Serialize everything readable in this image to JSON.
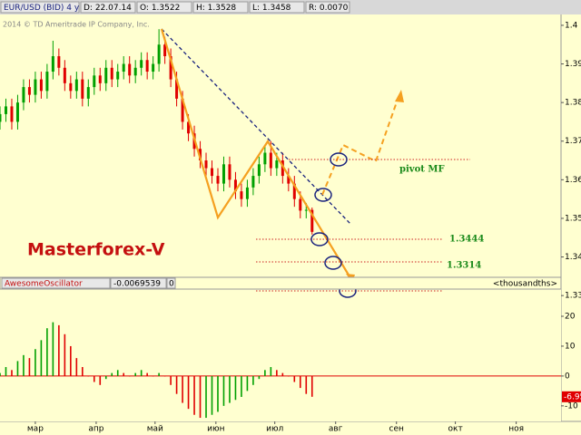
{
  "header": [
    "EUR/USD (BID) 4 y D",
    "D: 22.07.14",
    "O: 1.3522",
    "H: 1.3528",
    "L: 1.3458",
    "R: 0.0070"
  ],
  "copyright": "2014 © TD Ameritrade IP Company, Inc.",
  "chart_data": {
    "type": "candlestick",
    "x": [
      0,
      3,
      6,
      9,
      12,
      15,
      18,
      21,
      24,
      27,
      30,
      33,
      36,
      39,
      42,
      45,
      48,
      51,
      54,
      57,
      60,
      63,
      66,
      69,
      72,
      75,
      78,
      81,
      84,
      87,
      90,
      93,
      96,
      99,
      102,
      105,
      108,
      111,
      114,
      117,
      120,
      123,
      126,
      129,
      132,
      135,
      138,
      141,
      144,
      147,
      150,
      153,
      156,
      159
    ],
    "open": [
      1.375,
      1.377,
      1.379,
      1.375,
      1.38,
      1.384,
      1.382,
      1.386,
      1.383,
      1.388,
      1.392,
      1.389,
      1.385,
      1.383,
      1.386,
      1.381,
      1.384,
      1.387,
      1.385,
      1.389,
      1.386,
      1.388,
      1.39,
      1.387,
      1.389,
      1.391,
      1.388,
      1.39,
      1.395,
      1.392,
      1.386,
      1.381,
      1.375,
      1.372,
      1.368,
      1.365,
      1.363,
      1.361,
      1.359,
      1.364,
      1.36,
      1.357,
      1.355,
      1.358,
      1.361,
      1.364,
      1.367,
      1.363,
      1.365,
      1.361,
      1.359,
      1.355,
      1.352,
      1.3522
    ],
    "high": [
      1.379,
      1.381,
      1.381,
      1.382,
      1.386,
      1.386,
      1.388,
      1.388,
      1.39,
      1.396,
      1.394,
      1.391,
      1.387,
      1.388,
      1.388,
      1.386,
      1.389,
      1.389,
      1.391,
      1.391,
      1.39,
      1.392,
      1.392,
      1.391,
      1.393,
      1.393,
      1.392,
      1.399,
      1.397,
      1.394,
      1.388,
      1.383,
      1.377,
      1.374,
      1.37,
      1.367,
      1.365,
      1.363,
      1.366,
      1.366,
      1.362,
      1.359,
      1.36,
      1.363,
      1.366,
      1.369,
      1.37,
      1.367,
      1.367,
      1.363,
      1.361,
      1.357,
      1.354,
      1.3528
    ],
    "low": [
      1.373,
      1.375,
      1.373,
      1.373,
      1.378,
      1.38,
      1.38,
      1.381,
      1.381,
      1.386,
      1.387,
      1.383,
      1.381,
      1.381,
      1.379,
      1.379,
      1.382,
      1.383,
      1.383,
      1.384,
      1.384,
      1.386,
      1.385,
      1.385,
      1.387,
      1.386,
      1.386,
      1.388,
      1.39,
      1.384,
      1.379,
      1.373,
      1.37,
      1.366,
      1.363,
      1.361,
      1.359,
      1.357,
      1.357,
      1.358,
      1.355,
      1.353,
      1.353,
      1.356,
      1.359,
      1.362,
      1.361,
      1.361,
      1.359,
      1.357,
      1.353,
      1.35,
      1.35,
      1.3458
    ],
    "close": [
      1.377,
      1.379,
      1.375,
      1.38,
      1.384,
      1.382,
      1.386,
      1.383,
      1.388,
      1.392,
      1.389,
      1.385,
      1.383,
      1.386,
      1.381,
      1.384,
      1.387,
      1.385,
      1.389,
      1.386,
      1.388,
      1.39,
      1.387,
      1.389,
      1.391,
      1.388,
      1.39,
      1.395,
      1.392,
      1.386,
      1.381,
      1.375,
      1.372,
      1.368,
      1.365,
      1.363,
      1.361,
      1.359,
      1.364,
      1.36,
      1.357,
      1.355,
      1.358,
      1.361,
      1.364,
      1.367,
      1.363,
      1.365,
      1.361,
      1.359,
      1.355,
      1.352,
      1.3522,
      1.3465
    ],
    "up_color": "#00a000",
    "down_color": "#e00000",
    "xlim": [
      0,
      290
    ],
    "xticks": [
      {
        "value": 18,
        "label": "мар"
      },
      {
        "value": 49,
        "label": "апр"
      },
      {
        "value": 79,
        "label": "май"
      },
      {
        "value": 110,
        "label": "июн"
      },
      {
        "value": 140,
        "label": "июл"
      },
      {
        "value": 171,
        "label": "авг"
      },
      {
        "value": 202,
        "label": "сен"
      },
      {
        "value": 232,
        "label": "окт"
      },
      {
        "value": 263,
        "label": "ноя"
      }
    ],
    "ylim": [
      1.3298,
      1.4028
    ],
    "yticks": [
      1.33,
      1.34,
      1.35,
      1.36,
      1.37,
      1.38,
      1.39,
      1.4
    ],
    "annotations": {
      "brand": "Masterforex-V",
      "pivot": "pivot MF",
      "levels": [
        "1.3444",
        "1.3314"
      ]
    },
    "indicator": {
      "name": "AwesomeOscillator",
      "header_value": "-0.0069539",
      "header_zero": "0",
      "unit_label": "<thousandths>",
      "current_label": "-6.95",
      "values": [
        1,
        3,
        2,
        5,
        7,
        6,
        9,
        12,
        16,
        18,
        17,
        14,
        10,
        6,
        3,
        0,
        -2,
        -3,
        -1,
        1,
        2,
        1,
        0,
        1,
        2,
        1,
        0,
        1,
        0,
        -3,
        -6,
        -9,
        -11,
        -13,
        -14,
        -14,
        -13,
        -12,
        -10,
        -9,
        -8,
        -7,
        -5,
        -3,
        -1,
        2,
        3,
        2,
        1,
        0,
        -2,
        -4,
        -6,
        -6.9539
      ],
      "ylim": [
        -15.2,
        29.1
      ],
      "yticks": [
        -10,
        0,
        10,
        20
      ],
      "zero_color": "#e00000"
    }
  }
}
